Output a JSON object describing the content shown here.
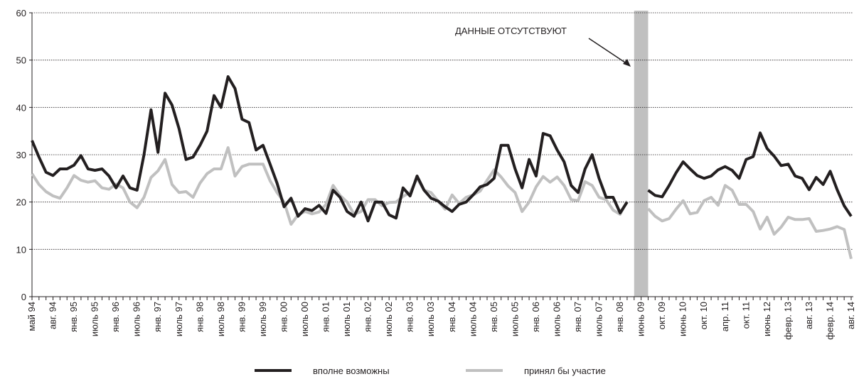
{
  "chart_data": {
    "type": "line",
    "annotation": "ДАННЫЕ  ОТСУТСТВУЮТ",
    "categories": [
      "май 94",
      null,
      null,
      "авг. 94",
      null,
      null,
      "янв. 95",
      null,
      null,
      "июль 95",
      null,
      null,
      "янв. 96",
      null,
      null,
      "июль 96",
      null,
      null,
      "янв. 97",
      null,
      null,
      "июль 97",
      null,
      null,
      "янв. 98",
      null,
      null,
      "июль 98",
      null,
      null,
      "янв. 99",
      null,
      null,
      "июль 99",
      null,
      null,
      "янв. 00",
      null,
      null,
      "июль 00",
      null,
      null,
      "янв. 01",
      null,
      null,
      "июль 01",
      null,
      null,
      "янв. 02",
      null,
      null,
      "июль 02",
      null,
      null,
      "янв. 03",
      null,
      null,
      "июль 03",
      null,
      null,
      "янв. 04",
      null,
      null,
      "июль 04",
      null,
      null,
      "янв. 05",
      null,
      null,
      "июль 05",
      null,
      null,
      "янв. 06",
      null,
      null,
      "июль 06",
      null,
      null,
      "янв. 07",
      null,
      null,
      "июль 07",
      null,
      null,
      "янв. 08",
      null,
      null,
      "июнь 09",
      null,
      null,
      "окт. 09",
      null,
      null,
      "июнь 10",
      null,
      null,
      "окт. 10",
      null,
      null,
      "апр. 11",
      null,
      null,
      "окт. 11",
      null,
      null,
      "июнь 12",
      null,
      null,
      "февр. 13",
      null,
      null,
      "авг. 13",
      null,
      null,
      "февр. 14",
      null,
      null,
      "авг. 14"
    ],
    "series": [
      {
        "name": "вполне возможны",
        "color": "#231f20",
        "values": [
          33,
          29.5,
          26.3,
          25.6,
          27,
          27,
          27.8,
          29.8,
          27,
          26.7,
          27,
          25.5,
          23,
          25.5,
          23,
          22.5,
          30,
          39.5,
          30.5,
          43,
          40.5,
          35.5,
          29,
          29.5,
          32,
          35,
          42.5,
          40,
          46.5,
          44,
          37.5,
          36.8,
          31,
          32,
          28,
          24,
          19,
          20.8,
          17,
          18.6,
          18.2,
          19.3,
          17.6,
          22.5,
          21,
          18,
          17,
          20,
          16,
          20,
          20,
          17.3,
          16.6,
          23,
          21.3,
          25.5,
          22.5,
          20.8,
          20.2,
          19,
          18,
          19.5,
          20,
          21.5,
          23.2,
          23.7,
          25,
          32,
          32,
          27,
          23,
          29,
          25.5,
          34.5,
          34,
          31,
          28.5,
          23.5,
          22,
          27,
          30,
          25,
          21,
          21,
          17.7,
          20,
          null,
          null,
          22.5,
          21.4,
          21.1,
          23.5,
          26.2,
          28.5,
          27,
          25.6,
          25,
          25.5,
          26.8,
          27.5,
          26.7,
          25,
          29,
          29.6,
          34.6,
          31.3,
          29.7,
          27.7,
          28,
          25.5,
          25,
          22.6,
          25.2,
          23.7,
          26.5,
          22.6,
          19.2,
          17
        ]
      },
      {
        "name": "принял бы участие",
        "color": "#c0c0c0",
        "values": [
          26,
          23.7,
          22.2,
          21.3,
          20.8,
          23,
          25.6,
          24.6,
          24.2,
          24.5,
          23,
          22.7,
          23.8,
          23,
          20,
          18.8,
          21,
          25.2,
          26.6,
          29,
          23.7,
          22,
          22.2,
          21,
          24,
          26,
          27,
          27,
          31.5,
          25.5,
          27.5,
          28,
          28,
          28,
          24.5,
          22,
          20,
          15.3,
          17.3,
          18,
          17.5,
          17.9,
          19.5,
          23.5,
          21.4,
          20,
          17.4,
          18,
          20.5,
          20.5,
          19.2,
          19.9,
          20,
          21.2,
          22,
          25,
          22.5,
          22,
          20.2,
          18.5,
          21.5,
          19.7,
          21,
          21.5,
          22.3,
          24.6,
          26.8,
          25.3,
          23.4,
          22,
          18,
          20,
          23.2,
          25.4,
          24.2,
          25.3,
          23.5,
          20.5,
          20.3,
          24.3,
          23.5,
          21,
          20.5,
          18.3,
          17.4,
          20.2,
          null,
          null,
          18.6,
          17,
          16,
          16.5,
          18.5,
          20.3,
          17.5,
          17.8,
          20.3,
          21,
          19.3,
          23.5,
          22.5,
          19.5,
          19.5,
          18,
          14.3,
          16.8,
          13.2,
          14.7,
          16.8,
          16.3,
          16.3,
          16.5,
          13.8,
          14,
          14.3,
          14.8,
          14.2,
          8
        ]
      }
    ],
    "ylim": [
      0,
      60
    ],
    "yticks": [
      0,
      10,
      20,
      30,
      40,
      50,
      60
    ],
    "grid": true,
    "gap_color": "#c0c0c0"
  }
}
